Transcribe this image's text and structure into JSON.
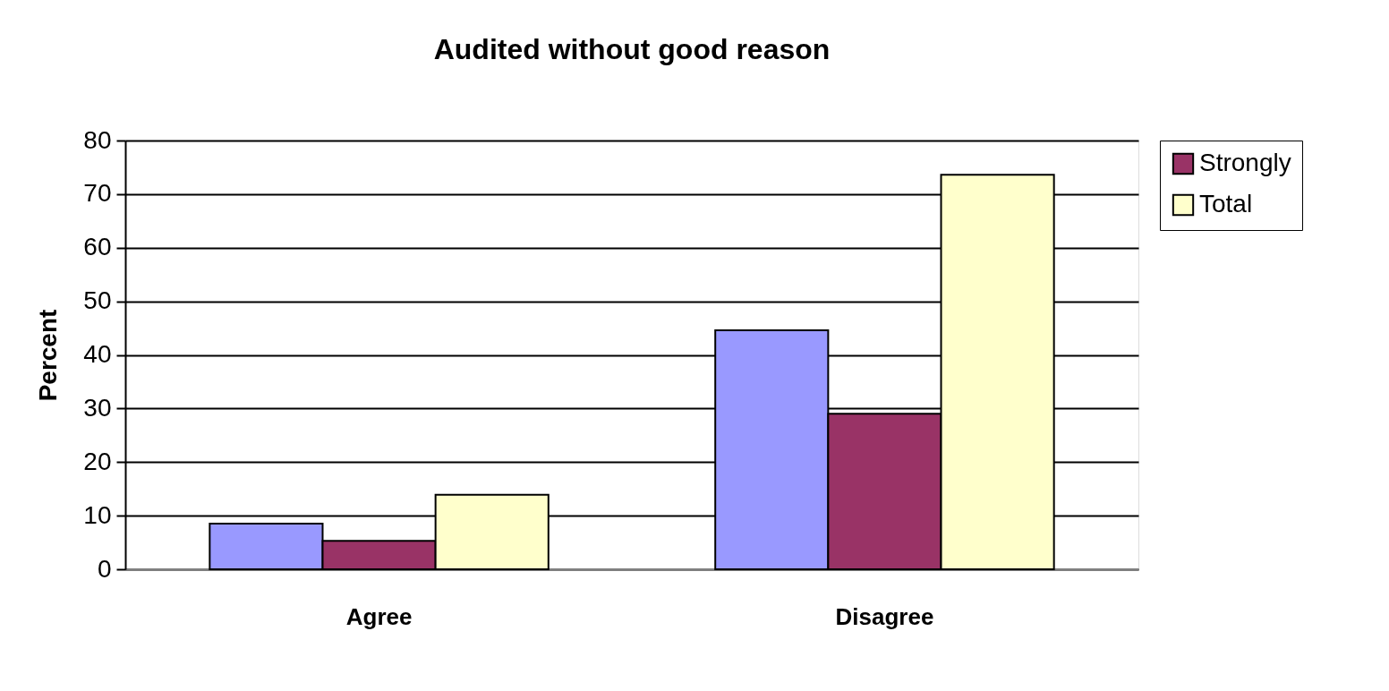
{
  "chart_data": {
    "type": "bar",
    "title": "Audited without good reason",
    "ylabel": "Percent",
    "categories": [
      "Agree",
      "Disagree"
    ],
    "series": [
      {
        "color": "#9999ff",
        "values": [
          8.5,
          44.6
        ]
      },
      {
        "name": "Strongly",
        "color": "#993366",
        "values": [
          5.3,
          29.0
        ]
      },
      {
        "name": "Total",
        "color": "#ffffcc",
        "values": [
          13.9,
          73.6
        ]
      }
    ],
    "ylim": [
      0,
      80
    ],
    "yticks": [
      0,
      10,
      20,
      30,
      40,
      50,
      60,
      70,
      80
    ],
    "grid": "y",
    "legend": "right"
  }
}
